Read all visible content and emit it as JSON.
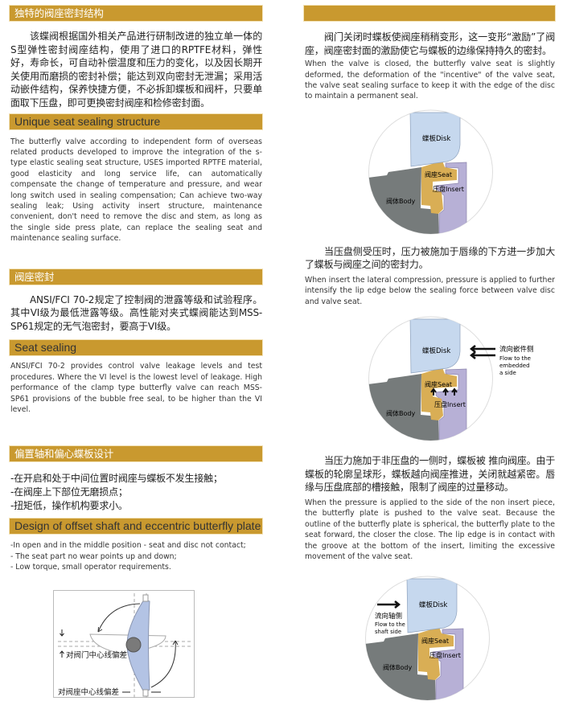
{
  "left": {
    "unique_cn": {
      "title": "独特的阀座密封结构",
      "body": "该蝶阀根据国外相关产品进行研制改进的独立单一体的S型弹性密封阀座结构，使用了进口的RPTFE材料，弹性好，寿命长，可自动补偿温度和压力的变化，以及因长期开关使用而磨损的密封补偿；能达到双向密封无泄漏；采用活动嵌件结构，保养快捷方便，不必拆卸蝶板和阀杆，只要单面取下压盘，即可更换密封阀座和检修密封面。"
    },
    "unique_en": {
      "title": "Unique seat sealing structure",
      "body": "The butterfly valve according to independent form of overseas related products developed to improve the integration of the s-type elastic sealing seat structure, USES imported RPTFE material, good elasticity and long service life, can automatically compensate the change of temperature and pressure, and wear long switch used in sealing compensation; Can achieve two-way sealing leak; Using activity insert structure, maintenance convenient, don't need to remove the disc and stem, as long as the single side press plate, can replace the sealing seat and maintenance sealing surface."
    },
    "seat_cn": {
      "title": "阀座密封",
      "body": "ANSI/FCI 70-2规定了控制阀的泄露等级和试验程序。其中VI级为最低泄露等级。高性能对夹式蝶阀能达到MSS-SP61规定的无气泡密封，要高于VI级。"
    },
    "seat_en": {
      "title": "Seat sealing",
      "body": "ANSI/FCI 70-2 provides control valve leakage levels and test procedures. Where the VI level is the lowest level of leakage. High performance of the clamp type butterfly valve can reach MSS-SP61 provisions of the bubble free seal, to be higher than the VI level."
    },
    "offset_cn": {
      "title": "偏置轴和偏心蝶板设计",
      "items": [
        "-在开启和处于中间位置时阀座与蝶板不发生接触；",
        "-在阀座上下部位无磨损点；",
        "-扭矩低，操作机构要求小。"
      ]
    },
    "offset_en": {
      "title": "Design of offset shaft and eccentric butterfly plate",
      "items": [
        "-In open and in the middle position - seat and disc not contact;",
        "- The seat part no wear points up and down;",
        "- Low torque, small operator requirements."
      ]
    },
    "offset_diagram": {
      "valve_center_offset": "对阀门中心线偏差",
      "seat_center_offset": "对阀座中心线偏差"
    }
  },
  "right": {
    "header_title": "",
    "closed": {
      "cn": "阀门关闭时蝶板使阀座稍稍变形，这一变形“激励”了阀座，阀座密封面的激励使它与蝶板的边缘保持持久的密封。",
      "en": "When the valve is closed, the butterfly valve seat is slightly deformed, the deformation of the \"incentive\" of the valve seat, the valve seat sealing surface to keep it with the edge of the disc to maintain a permanent seal."
    },
    "insert_side": {
      "cn": "当压盘侧受压时，压力被施加于唇缘的下方进一步加大了蝶板与阀座之间的密封力。",
      "en": "When insert the lateral compression, pressure is applied to further intensify the lip edge below the sealing force between valve disc and valve seat.",
      "flow_cn": "流向嵌件侧",
      "flow_en": [
        "Flow to the",
        "embedded",
        "a side"
      ]
    },
    "shaft_side": {
      "cn": "当压力施加于非压盘的一侧时，蝶板被 推向阀座。由于蝶板的轮廓呈球形，蝶板越向阀座推进，关闭就越紧密。唇缘与压盘底部的槽接触，限制了阀座的过量移动。",
      "en": "When the pressure is applied to the side of the non insert piece, the butterfly plate is pushed to the valve seat. Because the outline of the butterfly plate is spherical, the butterfly plate to the seat forward, the closer the close. The lip edge is in contact with the groove at the bottom of the insert, limiting the excessive movement of the valve seat.",
      "flow_cn": "流向轴侧",
      "flow_en": [
        "Flow to the",
        "shaft side"
      ]
    },
    "labels": {
      "disk": "蝶板Disk",
      "seat": "阀座Seat",
      "insert": "压盘Insert",
      "body": "阀体Body"
    }
  },
  "colors": {
    "header": "#C9992F",
    "disk": "#C6D8EE",
    "seat": "#D9AE55",
    "insert": "#B7B0D6",
    "body": "#767B7B"
  }
}
